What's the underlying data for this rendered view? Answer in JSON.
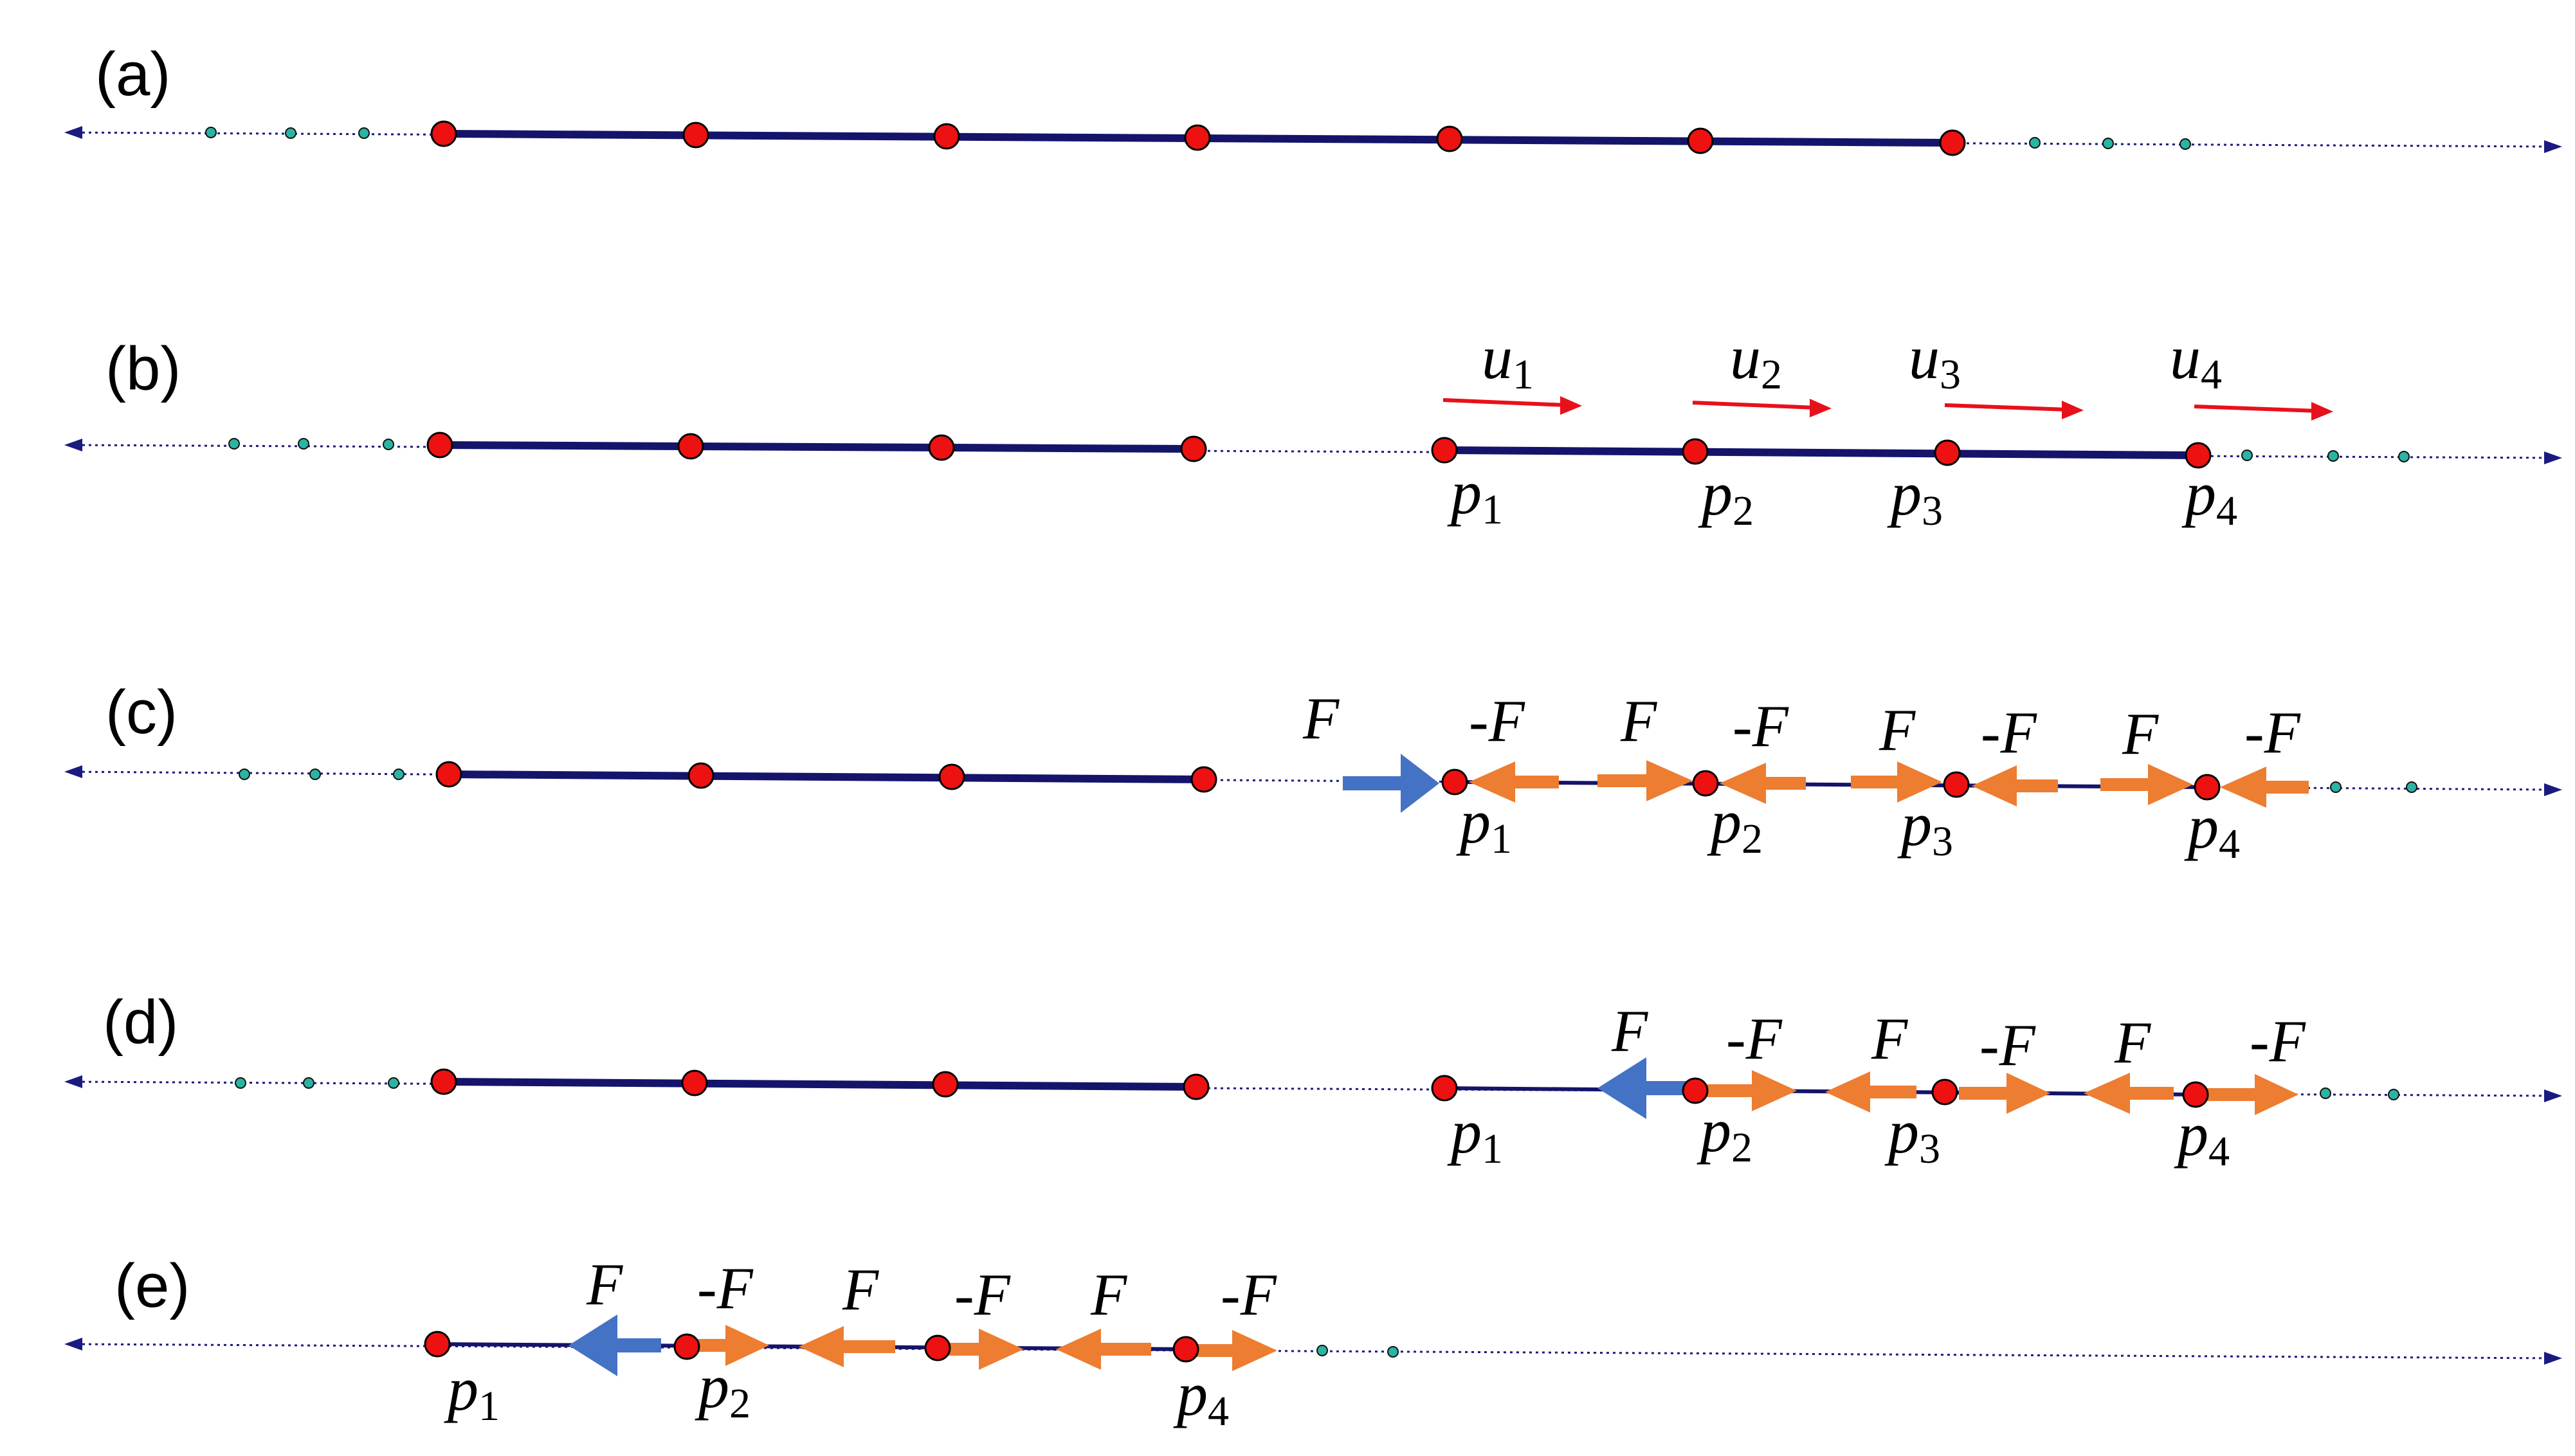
{
  "colors": {
    "axis": "#1a1a80",
    "rod": "#14146b",
    "particle": "#ee1111",
    "small_dot": "#2bb3a3",
    "velocity": "#e8101a",
    "push_force": "#4472c4",
    "pair_force": "#ed7d31"
  },
  "panels": [
    {
      "label": "(a)",
      "rod_count": 7,
      "arrows": [],
      "plabels": [],
      "ulabels": [],
      "flabels": []
    },
    {
      "label": "(b)",
      "arrows": [
        {
          "kind": "velocity",
          "label": "u",
          "sub": "1"
        },
        {
          "kind": "velocity",
          "label": "u",
          "sub": "2"
        },
        {
          "kind": "velocity",
          "label": "u",
          "sub": "3"
        },
        {
          "kind": "velocity",
          "label": "u",
          "sub": "4"
        }
      ],
      "plabels": [
        {
          "main": "p",
          "sub": "1"
        },
        {
          "main": "p",
          "sub": "2"
        },
        {
          "main": "p",
          "sub": "3"
        },
        {
          "main": "p",
          "sub": "4"
        }
      ],
      "flabels": []
    },
    {
      "label": "(c)",
      "plabels": [
        {
          "main": "p",
          "sub": "1"
        },
        {
          "main": "p",
          "sub": "2"
        },
        {
          "main": "p",
          "sub": "3"
        },
        {
          "main": "p",
          "sub": "4"
        }
      ],
      "flabels": [
        "F",
        "-F",
        "F",
        "-F",
        "F",
        "-F",
        "F",
        "-F"
      ]
    },
    {
      "label": "(d)",
      "plabels": [
        {
          "main": "p",
          "sub": "1"
        },
        {
          "main": "p",
          "sub": "2"
        },
        {
          "main": "p",
          "sub": "3"
        },
        {
          "main": "p",
          "sub": "4"
        }
      ],
      "flabels": [
        "F",
        "-F",
        "F",
        "-F",
        "F",
        "-F"
      ]
    },
    {
      "label": "(e)",
      "plabels": [
        {
          "main": "p",
          "sub": "1"
        },
        {
          "main": "p",
          "sub": "2"
        },
        {
          "main": "p",
          "sub": "4"
        }
      ],
      "flabels": [
        "F",
        "-F",
        "F",
        "-F",
        "F",
        "-F"
      ]
    }
  ]
}
